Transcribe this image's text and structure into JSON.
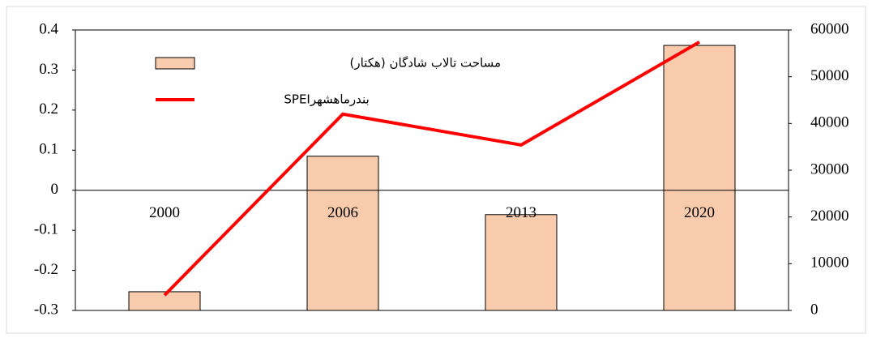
{
  "chart_data": {
    "type": "combo",
    "categories": [
      "2000",
      "2006",
      "2013",
      "2020"
    ],
    "series": [
      {
        "name": "مساحت تالاب شادگان (هکتار)",
        "type": "bar",
        "axis": "y2",
        "color": "#f8cbad",
        "values": [
          4000,
          33000,
          20500,
          56700
        ]
      },
      {
        "name": "بندرماهشهرSPEI",
        "type": "line",
        "axis": "y",
        "color": "#ff0000",
        "values": [
          -0.262,
          0.19,
          0.113,
          0.37
        ]
      }
    ],
    "ylim": [
      -0.3,
      0.4
    ],
    "yticks": [
      -0.3,
      -0.2,
      -0.1,
      0,
      0.1,
      0.2,
      0.3,
      0.4
    ],
    "y2lim": [
      0,
      60000
    ],
    "y2ticks": [
      0,
      10000,
      20000,
      30000,
      40000,
      50000,
      60000
    ],
    "legend": "upper-left"
  }
}
